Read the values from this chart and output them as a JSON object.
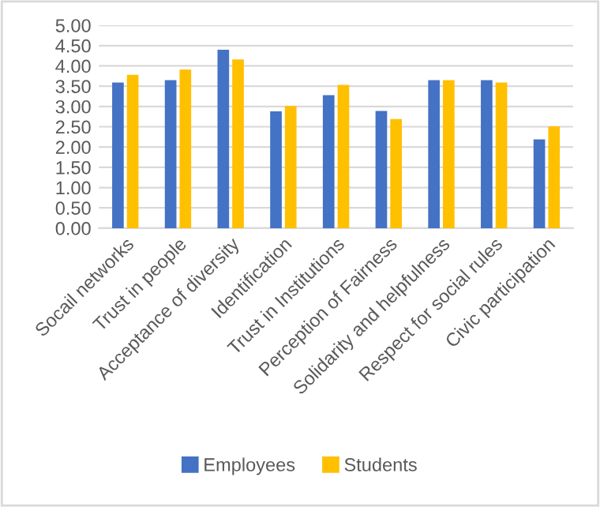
{
  "chart_data": {
    "type": "bar",
    "categories": [
      "Socail networks",
      "Trust in people",
      "Acceptance of diversity",
      "Identification",
      "Trust in Institutions",
      "Perception of Fairness",
      "Solidarity and helpfulness",
      "Respect for social rules",
      "Civic participation"
    ],
    "series": [
      {
        "name": "Employees",
        "color": "#4472c4",
        "values": [
          3.59,
          3.65,
          4.4,
          2.88,
          3.28,
          2.89,
          3.65,
          3.65,
          2.19
        ]
      },
      {
        "name": "Students",
        "color": "#ffc000",
        "values": [
          3.78,
          3.91,
          4.16,
          3.01,
          3.53,
          2.69,
          3.65,
          3.59,
          2.51
        ]
      }
    ],
    "ylim": [
      0,
      5
    ],
    "yticks": [
      {
        "value": 0,
        "label": "0.00"
      },
      {
        "value": 0.5,
        "label": "0.50"
      },
      {
        "value": 1,
        "label": "1.00"
      },
      {
        "value": 1.5,
        "label": "1.50"
      },
      {
        "value": 2,
        "label": "2.00"
      },
      {
        "value": 2.5,
        "label": "2.50"
      },
      {
        "value": 3,
        "label": "3.00"
      },
      {
        "value": 3.5,
        "label": "3.50"
      },
      {
        "value": 4,
        "label": "4.00"
      },
      {
        "value": 4.5,
        "label": "4.50"
      },
      {
        "value": 5,
        "label": "5.00"
      }
    ],
    "grid": "y",
    "legend": "bottom"
  }
}
